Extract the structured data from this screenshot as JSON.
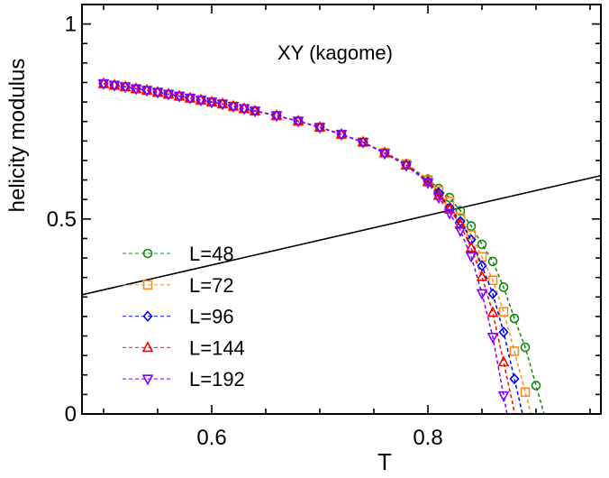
{
  "chart_data": {
    "type": "line",
    "title": "XY (kagome)",
    "xlabel": "T",
    "ylabel": "helicity modulus",
    "xlim": [
      0.48,
      0.96
    ],
    "ylim": [
      0,
      1.05
    ],
    "xticks": [
      {
        "value": 0.6,
        "label": "0.6"
      },
      {
        "value": 0.8,
        "label": "0.8"
      }
    ],
    "yticks": [
      {
        "value": 0,
        "label": "0"
      },
      {
        "value": 0.5,
        "label": "0.5"
      },
      {
        "value": 1,
        "label": "1"
      }
    ],
    "x_minor_step": 0.05,
    "y_minor_step": 0.05,
    "grid": false,
    "legend_placement": "lower-left",
    "series": [
      {
        "name": "L=48",
        "color": "#118811",
        "marker": "circle",
        "x": [
          0.5,
          0.51,
          0.52,
          0.53,
          0.54,
          0.55,
          0.56,
          0.57,
          0.58,
          0.59,
          0.6,
          0.61,
          0.62,
          0.63,
          0.64,
          0.66,
          0.68,
          0.7,
          0.72,
          0.74,
          0.76,
          0.78,
          0.8,
          0.81,
          0.82,
          0.83,
          0.84,
          0.85,
          0.86,
          0.87,
          0.88,
          0.89,
          0.9
        ],
        "y": [
          0.847,
          0.843,
          0.839,
          0.834,
          0.83,
          0.825,
          0.82,
          0.815,
          0.81,
          0.805,
          0.8,
          0.795,
          0.789,
          0.783,
          0.777,
          0.765,
          0.751,
          0.735,
          0.717,
          0.697,
          0.671,
          0.642,
          0.602,
          0.578,
          0.555,
          0.521,
          0.482,
          0.435,
          0.391,
          0.325,
          0.245,
          0.171,
          0.073
        ]
      },
      {
        "name": "L=72",
        "color": "#ff8c1a",
        "marker": "square",
        "x": [
          0.5,
          0.51,
          0.52,
          0.53,
          0.54,
          0.55,
          0.56,
          0.57,
          0.58,
          0.59,
          0.6,
          0.61,
          0.62,
          0.63,
          0.64,
          0.66,
          0.68,
          0.7,
          0.72,
          0.74,
          0.76,
          0.78,
          0.8,
          0.81,
          0.82,
          0.83,
          0.84,
          0.85,
          0.86,
          0.87,
          0.88,
          0.89
        ],
        "y": [
          0.847,
          0.843,
          0.839,
          0.834,
          0.83,
          0.825,
          0.82,
          0.815,
          0.81,
          0.805,
          0.8,
          0.795,
          0.789,
          0.783,
          0.777,
          0.765,
          0.751,
          0.735,
          0.717,
          0.697,
          0.67,
          0.641,
          0.6,
          0.572,
          0.545,
          0.503,
          0.459,
          0.403,
          0.343,
          0.262,
          0.161,
          0.056
        ]
      },
      {
        "name": "L=96",
        "color": "#0000ff",
        "marker": "diamond",
        "x": [
          0.5,
          0.51,
          0.52,
          0.53,
          0.54,
          0.55,
          0.56,
          0.57,
          0.58,
          0.59,
          0.6,
          0.61,
          0.62,
          0.63,
          0.64,
          0.66,
          0.68,
          0.7,
          0.72,
          0.74,
          0.76,
          0.78,
          0.8,
          0.81,
          0.82,
          0.83,
          0.84,
          0.85,
          0.86,
          0.87,
          0.88
        ],
        "y": [
          0.847,
          0.843,
          0.839,
          0.834,
          0.83,
          0.825,
          0.82,
          0.815,
          0.81,
          0.805,
          0.8,
          0.795,
          0.789,
          0.783,
          0.777,
          0.765,
          0.751,
          0.735,
          0.717,
          0.697,
          0.669,
          0.639,
          0.597,
          0.567,
          0.529,
          0.494,
          0.447,
          0.38,
          0.308,
          0.21,
          0.09
        ]
      },
      {
        "name": "L=144",
        "color": "#ff0000",
        "marker": "triangle-up",
        "x": [
          0.5,
          0.51,
          0.52,
          0.53,
          0.54,
          0.55,
          0.56,
          0.57,
          0.58,
          0.59,
          0.6,
          0.61,
          0.62,
          0.63,
          0.64,
          0.66,
          0.68,
          0.7,
          0.72,
          0.74,
          0.76,
          0.78,
          0.8,
          0.81,
          0.82,
          0.83,
          0.84,
          0.85,
          0.86,
          0.87
        ],
        "y": [
          0.847,
          0.843,
          0.839,
          0.834,
          0.83,
          0.825,
          0.82,
          0.815,
          0.81,
          0.805,
          0.8,
          0.795,
          0.789,
          0.783,
          0.777,
          0.765,
          0.751,
          0.735,
          0.717,
          0.697,
          0.669,
          0.638,
          0.595,
          0.56,
          0.525,
          0.486,
          0.426,
          0.352,
          0.26,
          0.133
        ]
      },
      {
        "name": "L=192",
        "color": "#8000ff",
        "marker": "triangle-down",
        "x": [
          0.5,
          0.51,
          0.52,
          0.53,
          0.54,
          0.55,
          0.56,
          0.57,
          0.58,
          0.59,
          0.6,
          0.61,
          0.62,
          0.63,
          0.64,
          0.66,
          0.68,
          0.7,
          0.72,
          0.74,
          0.76,
          0.78,
          0.8,
          0.81,
          0.82,
          0.83,
          0.84,
          0.85,
          0.86,
          0.87
        ],
        "y": [
          0.847,
          0.843,
          0.839,
          0.834,
          0.83,
          0.825,
          0.82,
          0.815,
          0.81,
          0.805,
          0.8,
          0.795,
          0.789,
          0.783,
          0.777,
          0.765,
          0.751,
          0.735,
          0.717,
          0.697,
          0.668,
          0.637,
          0.593,
          0.555,
          0.515,
          0.47,
          0.404,
          0.309,
          0.197,
          0.047
        ]
      }
    ],
    "reference_line": {
      "color": "#000000",
      "x": [
        0.48,
        0.96
      ],
      "y": [
        0.3056,
        0.6112
      ]
    }
  }
}
